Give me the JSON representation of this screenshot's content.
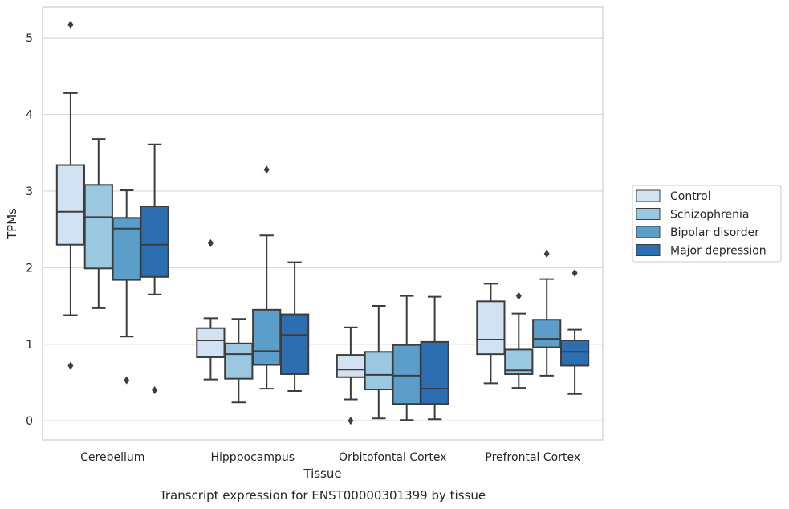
{
  "caption": "Transcript expression for ENST00000301399 by tissue",
  "chart_data": {
    "type": "box",
    "xlabel": "Tissue",
    "ylabel": "TPMs",
    "ylim": [
      -0.25,
      5.4
    ],
    "yticks": [
      "0",
      "1",
      "2",
      "3",
      "4",
      "5"
    ],
    "grid": "horizontal",
    "legend_position": "right",
    "categories": [
      "Cerebellum",
      "Hipppocampus",
      "Orbitofontal Cortex",
      "Prefrontal Cortex"
    ],
    "series": [
      {
        "name": "Control",
        "color": "#d1e2f2",
        "boxes": [
          {
            "whislo": 1.38,
            "q1": 2.3,
            "med": 2.73,
            "q3": 3.34,
            "whishi": 4.28,
            "fliers": [
              5.17,
              0.72
            ]
          },
          {
            "whislo": 0.54,
            "q1": 0.83,
            "med": 1.05,
            "q3": 1.21,
            "whishi": 1.34,
            "fliers": [
              2.32
            ]
          },
          {
            "whislo": 0.28,
            "q1": 0.57,
            "med": 0.67,
            "q3": 0.86,
            "whishi": 1.22,
            "fliers": [
              0.0
            ]
          },
          {
            "whislo": 0.49,
            "q1": 0.87,
            "med": 1.06,
            "q3": 1.56,
            "whishi": 1.79,
            "fliers": []
          }
        ]
      },
      {
        "name": "Schizophrenia",
        "color": "#9ac8e0",
        "boxes": [
          {
            "whislo": 1.47,
            "q1": 1.99,
            "med": 2.66,
            "q3": 3.08,
            "whishi": 3.68,
            "fliers": []
          },
          {
            "whislo": 0.24,
            "q1": 0.55,
            "med": 0.87,
            "q3": 1.01,
            "whishi": 1.33,
            "fliers": []
          },
          {
            "whislo": 0.03,
            "q1": 0.41,
            "med": 0.6,
            "q3": 0.9,
            "whishi": 1.5,
            "fliers": []
          },
          {
            "whislo": 0.43,
            "q1": 0.61,
            "med": 0.66,
            "q3": 0.93,
            "whishi": 1.4,
            "fliers": [
              1.63
            ]
          }
        ]
      },
      {
        "name": "Bipolar disorder",
        "color": "#5a9ec9",
        "boxes": [
          {
            "whislo": 1.1,
            "q1": 1.84,
            "med": 2.51,
            "q3": 2.65,
            "whishi": 3.01,
            "fliers": [
              0.53
            ]
          },
          {
            "whislo": 0.42,
            "q1": 0.73,
            "med": 0.91,
            "q3": 1.45,
            "whishi": 2.42,
            "fliers": [
              3.28
            ]
          },
          {
            "whislo": 0.01,
            "q1": 0.22,
            "med": 0.59,
            "q3": 0.99,
            "whishi": 1.63,
            "fliers": []
          },
          {
            "whislo": 0.59,
            "q1": 0.96,
            "med": 1.07,
            "q3": 1.32,
            "whishi": 1.85,
            "fliers": [
              2.18
            ]
          }
        ]
      },
      {
        "name": "Major depression",
        "color": "#2c6eaf",
        "boxes": [
          {
            "whislo": 1.65,
            "q1": 1.88,
            "med": 2.3,
            "q3": 2.8,
            "whishi": 3.61,
            "fliers": [
              0.4
            ]
          },
          {
            "whislo": 0.39,
            "q1": 0.61,
            "med": 1.12,
            "q3": 1.39,
            "whishi": 2.07,
            "fliers": []
          },
          {
            "whislo": 0.02,
            "q1": 0.22,
            "med": 0.42,
            "q3": 1.03,
            "whishi": 1.62,
            "fliers": []
          },
          {
            "whislo": 0.35,
            "q1": 0.72,
            "med": 0.9,
            "q3": 1.05,
            "whishi": 1.19,
            "fliers": [
              1.93
            ]
          }
        ]
      }
    ]
  },
  "colors": {
    "grid": "#d9d9d9",
    "frame": "#cccccc",
    "stroke": "#3d3d3d",
    "text": "#262626"
  }
}
